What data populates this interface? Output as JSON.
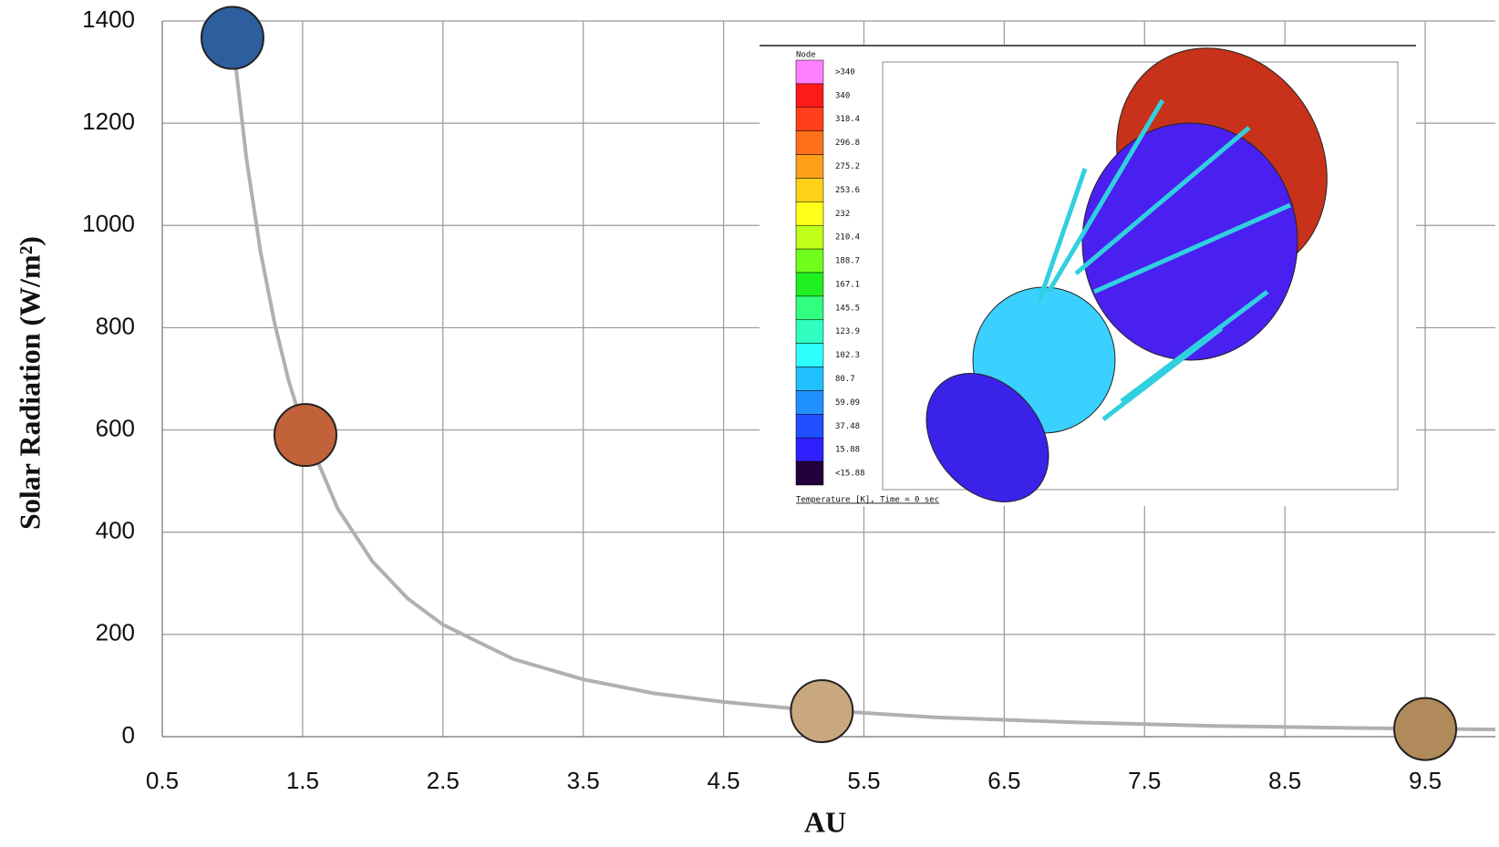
{
  "chart_data": {
    "type": "line",
    "xlabel": "AU",
    "ylabel": "Solar Radiation (W/m²)",
    "x": [
      1,
      1.1,
      1.2,
      1.3,
      1.4,
      1.5,
      1.75,
      2,
      2.25,
      2.5,
      3,
      3.5,
      4,
      4.5,
      5,
      6,
      7,
      8,
      9,
      10
    ],
    "values": [
      1367,
      1130,
      949,
      809,
      697,
      608,
      446,
      342,
      270,
      219,
      152,
      112,
      85,
      68,
      55,
      38,
      28,
      21,
      17,
      14
    ],
    "color": "#b0b0b0",
    "points": {
      "x": [
        1.0,
        1.52,
        5.2,
        9.5
      ],
      "values": [
        1367,
        590,
        50,
        15
      ],
      "colors": [
        "#2d5f9e",
        "#c2623a",
        "#c9a77f",
        "#b08a5a"
      ]
    },
    "xlim": [
      0.5,
      10
    ],
    "xticks": [
      0.5,
      1.5,
      2.5,
      3.5,
      4.5,
      5.5,
      6.5,
      7.5,
      8.5,
      9.5
    ],
    "ylim": [
      0,
      1400
    ],
    "yticks": [
      0,
      200,
      400,
      600,
      800,
      1000,
      1200,
      1400
    ],
    "grid": true
  },
  "inset": {
    "legend_title": "Node",
    "legend_labels": [
      ">340",
      "340",
      "318.4",
      "296.8",
      "275.2",
      "253.6",
      "232",
      "210.4",
      "188.7",
      "167.1",
      "145.5",
      "123.9",
      "102.3",
      "80.7",
      "59.09",
      "37.48",
      "15.88",
      "<15.88"
    ],
    "legend_colors": [
      "#ff80ff",
      "#ff1a1a",
      "#ff401a",
      "#ff701a",
      "#ffa01a",
      "#ffd01a",
      "#ffff1a",
      "#c0ff1a",
      "#70ff1a",
      "#20f020",
      "#30ff80",
      "#30ffc0",
      "#30ffff",
      "#20c0ff",
      "#2090ff",
      "#2050ff",
      "#3020ff",
      "#22003a"
    ],
    "caption": "Temperature [K], Time = 0 sec"
  }
}
